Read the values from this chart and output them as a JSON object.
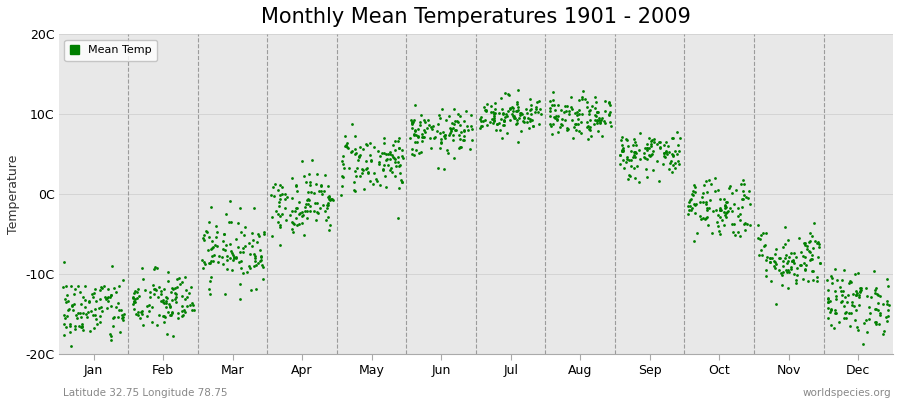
{
  "title": "Monthly Mean Temperatures 1901 - 2009",
  "ylabel": "Temperature",
  "ylim": [
    -20,
    20
  ],
  "yticks": [
    -20,
    -10,
    0,
    10,
    20
  ],
  "ytick_labels": [
    "-20C",
    "-10C",
    "0C",
    "10C",
    "20C"
  ],
  "months": [
    "Jan",
    "Feb",
    "Mar",
    "Apr",
    "May",
    "Jun",
    "Jul",
    "Aug",
    "Sep",
    "Oct",
    "Nov",
    "Dec"
  ],
  "dot_color": "#008000",
  "dot_size": 4,
  "background_color": "#FFFFFF",
  "plot_bg_color": "#E8E8E8",
  "subtitle_left": "Latitude 32.75 Longitude 78.75",
  "subtitle_right": "worldspecies.org",
  "legend_label": "Mean Temp",
  "title_fontsize": 15,
  "label_fontsize": 9,
  "tick_fontsize": 9,
  "monthly_means": [
    -14.5,
    -13.5,
    -7.0,
    -1.0,
    4.0,
    7.5,
    10.0,
    9.5,
    5.0,
    -1.5,
    -8.0,
    -13.5
  ],
  "monthly_stds": [
    2.2,
    2.0,
    2.2,
    2.0,
    2.0,
    1.5,
    1.2,
    1.3,
    1.5,
    2.0,
    2.0,
    2.0
  ],
  "n_years": 109,
  "seed": 42
}
